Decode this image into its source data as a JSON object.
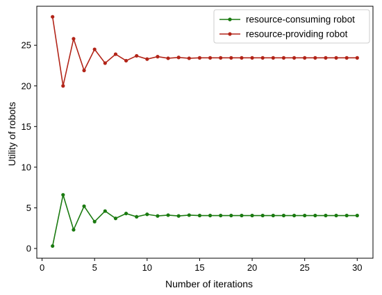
{
  "chart_data": {
    "type": "line",
    "xlabel": "Number of iterations",
    "ylabel": "Utility of robots",
    "xlim": [
      -0.5,
      31.5
    ],
    "ylim": [
      -1.2,
      29.8
    ],
    "x_ticks": [
      0,
      5,
      10,
      15,
      20,
      25,
      30
    ],
    "y_ticks": [
      0,
      5,
      10,
      15,
      20,
      25
    ],
    "grid": false,
    "legend_position": "upper right",
    "x": [
      1,
      2,
      3,
      4,
      5,
      6,
      7,
      8,
      9,
      10,
      11,
      12,
      13,
      14,
      15,
      16,
      17,
      18,
      19,
      20,
      21,
      22,
      23,
      24,
      25,
      26,
      27,
      28,
      29,
      30
    ],
    "series": [
      {
        "name": "resource-consuming robot",
        "color": "#1a7a10",
        "values": [
          0.3,
          6.6,
          2.3,
          5.2,
          3.3,
          4.6,
          3.7,
          4.3,
          3.9,
          4.2,
          4.0,
          4.1,
          4.0,
          4.1,
          4.05,
          4.05,
          4.05,
          4.05,
          4.05,
          4.05,
          4.05,
          4.05,
          4.05,
          4.05,
          4.05,
          4.05,
          4.05,
          4.05,
          4.05,
          4.05
        ]
      },
      {
        "name": "resource-providing robot",
        "color": "#b22418",
        "values": [
          28.5,
          20.0,
          25.8,
          21.9,
          24.5,
          22.8,
          23.9,
          23.1,
          23.7,
          23.3,
          23.6,
          23.4,
          23.5,
          23.4,
          23.45,
          23.45,
          23.45,
          23.45,
          23.45,
          23.45,
          23.45,
          23.45,
          23.45,
          23.45,
          23.45,
          23.45,
          23.45,
          23.45,
          23.45,
          23.45
        ]
      }
    ]
  }
}
